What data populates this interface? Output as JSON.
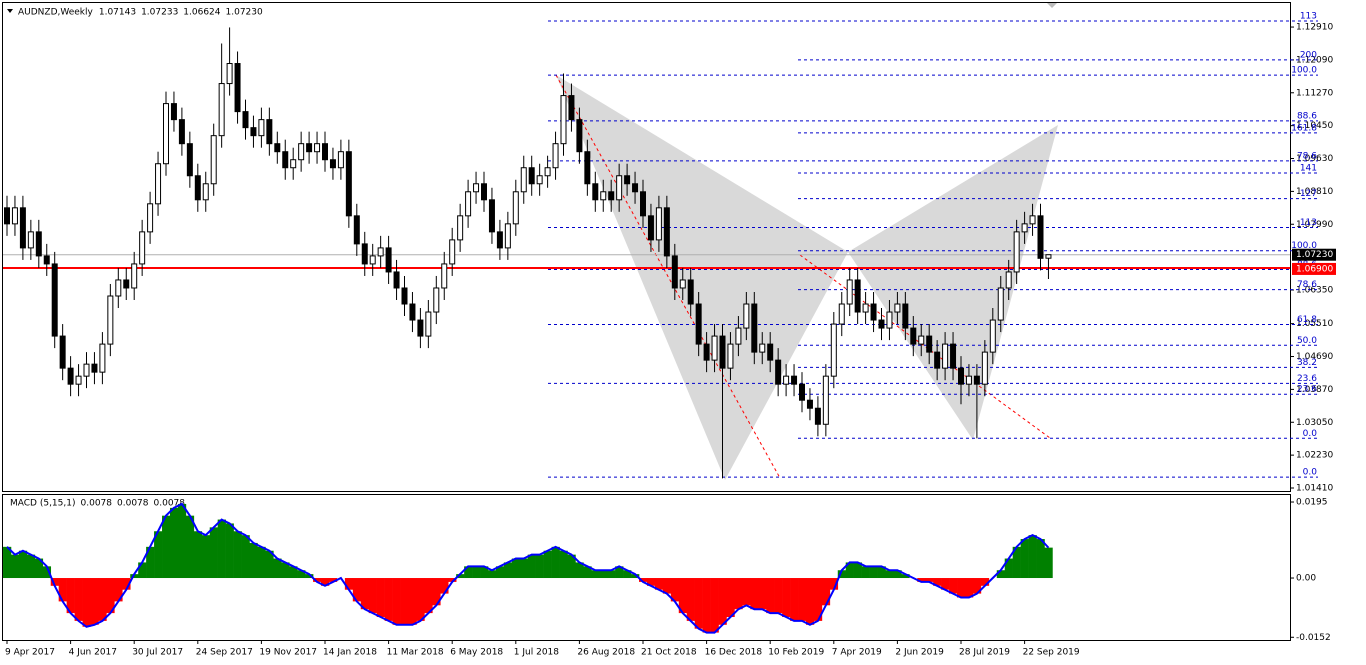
{
  "chart_data": [
    {
      "type": "candlestick",
      "title": "AUDNZD,Weekly",
      "title_values": [
        "1.07143",
        "1.07233",
        "1.06624",
        "1.07230"
      ],
      "categories": [
        "9 Apr 2017",
        null,
        null,
        null,
        null,
        null,
        null,
        null,
        "4 Jun 2017",
        null,
        null,
        null,
        null,
        null,
        null,
        null,
        "30 Jul 2017",
        null,
        null,
        null,
        null,
        null,
        null,
        null,
        "24 Sep 2017",
        null,
        null,
        null,
        null,
        null,
        null,
        null,
        "19 Nov 2017",
        null,
        null,
        null,
        null,
        null,
        null,
        null,
        "14 Jan 2018",
        null,
        null,
        null,
        null,
        null,
        null,
        null,
        "11 Mar 2018",
        null,
        null,
        null,
        null,
        null,
        null,
        null,
        "6 May 2018",
        null,
        null,
        null,
        null,
        null,
        null,
        null,
        "1 Jul 2018",
        null,
        null,
        null,
        null,
        null,
        null,
        null,
        "26 Aug 2018",
        null,
        null,
        null,
        null,
        null,
        null,
        null,
        "21 Oct 2018",
        null,
        null,
        null,
        null,
        null,
        null,
        null,
        "16 Dec 2018",
        null,
        null,
        null,
        null,
        null,
        null,
        null,
        "10 Feb 2019",
        null,
        null,
        null,
        null,
        null,
        null,
        null,
        "7 Apr 2019",
        null,
        null,
        null,
        null,
        null,
        null,
        null,
        "2 Jun 2019",
        null,
        null,
        null,
        null,
        null,
        null,
        null,
        "28 Jul 2019",
        null,
        null,
        null,
        null,
        null,
        null,
        null,
        "22 Sep 2019",
        null,
        null,
        null
      ],
      "open": [
        1.084,
        1.08,
        1.084,
        1.074,
        1.078,
        1.072,
        1.07,
        1.052,
        1.044,
        1.04,
        1.042,
        1.045,
        1.043,
        1.05,
        1.062,
        1.066,
        1.064,
        1.07,
        1.078,
        1.085,
        1.095,
        1.11,
        1.106,
        1.1,
        1.092,
        1.086,
        1.09,
        1.102,
        1.115,
        1.12,
        1.108,
        1.104,
        1.102,
        1.106,
        1.1,
        1.098,
        1.094,
        1.096,
        1.1,
        1.098,
        1.1,
        1.096,
        1.094,
        1.098,
        1.082,
        1.075,
        1.07,
        1.072,
        1.074,
        1.068,
        1.064,
        1.06,
        1.056,
        1.052,
        1.058,
        1.064,
        1.07,
        1.076,
        1.082,
        1.088,
        1.09,
        1.086,
        1.078,
        1.074,
        1.08,
        1.088,
        1.094,
        1.09,
        1.092,
        1.094,
        1.1,
        1.112,
        1.106,
        1.098,
        1.09,
        1.086,
        1.088,
        1.086,
        1.092,
        1.09,
        1.088,
        1.082,
        1.076,
        1.084,
        1.072,
        1.064,
        1.066,
        1.06,
        1.05,
        1.046,
        1.052,
        1.044,
        1.05,
        1.054,
        1.06,
        1.048,
        1.05,
        1.046,
        1.04,
        1.042,
        1.04,
        1.036,
        1.034,
        1.03,
        1.042,
        1.055,
        1.06,
        1.066,
        1.058,
        1.06,
        1.056,
        1.054,
        1.058,
        1.06,
        1.054,
        1.05,
        1.052,
        1.048,
        1.044,
        1.05,
        1.044,
        1.04,
        1.042,
        1.04,
        1.048,
        1.056,
        1.064,
        1.068,
        1.078,
        1.08,
        1.082,
        1.07143
      ],
      "high": [
        1.087,
        1.087,
        1.087,
        1.081,
        1.081,
        1.075,
        1.073,
        1.055,
        1.047,
        1.045,
        1.048,
        1.048,
        1.053,
        1.065,
        1.069,
        1.069,
        1.073,
        1.081,
        1.088,
        1.098,
        1.113,
        1.113,
        1.109,
        1.103,
        1.095,
        1.093,
        1.105,
        1.125,
        1.129,
        1.123,
        1.111,
        1.107,
        1.109,
        1.109,
        1.103,
        1.101,
        1.099,
        1.103,
        1.103,
        1.103,
        1.103,
        1.099,
        1.101,
        1.101,
        1.085,
        1.078,
        1.075,
        1.077,
        1.077,
        1.071,
        1.067,
        1.063,
        1.059,
        1.061,
        1.067,
        1.073,
        1.079,
        1.085,
        1.091,
        1.093,
        1.093,
        1.089,
        1.081,
        1.083,
        1.091,
        1.097,
        1.097,
        1.095,
        1.097,
        1.103,
        1.1175,
        1.115,
        1.109,
        1.101,
        1.093,
        1.091,
        1.091,
        1.095,
        1.095,
        1.093,
        1.091,
        1.085,
        1.087,
        1.087,
        1.075,
        1.069,
        1.069,
        1.063,
        1.053,
        1.055,
        1.055,
        1.053,
        1.057,
        1.063,
        1.063,
        1.053,
        1.053,
        1.049,
        1.045,
        1.045,
        1.043,
        1.039,
        1.037,
        1.045,
        1.058,
        1.063,
        1.069,
        1.069,
        1.063,
        1.063,
        1.059,
        1.061,
        1.063,
        1.063,
        1.057,
        1.055,
        1.055,
        1.051,
        1.053,
        1.053,
        1.047,
        1.045,
        1.045,
        1.051,
        1.059,
        1.067,
        1.071,
        1.081,
        1.083,
        1.085,
        1.085,
        1.07233
      ],
      "low": [
        1.077,
        1.077,
        1.071,
        1.071,
        1.069,
        1.067,
        1.049,
        1.041,
        1.037,
        1.037,
        1.039,
        1.04,
        1.04,
        1.047,
        1.059,
        1.061,
        1.061,
        1.067,
        1.075,
        1.082,
        1.092,
        1.103,
        1.097,
        1.089,
        1.083,
        1.083,
        1.087,
        1.099,
        1.112,
        1.105,
        1.101,
        1.099,
        1.099,
        1.097,
        1.095,
        1.091,
        1.091,
        1.093,
        1.095,
        1.095,
        1.093,
        1.091,
        1.091,
        1.079,
        1.072,
        1.067,
        1.067,
        1.069,
        1.065,
        1.061,
        1.057,
        1.053,
        1.049,
        1.049,
        1.055,
        1.061,
        1.067,
        1.073,
        1.079,
        1.085,
        1.083,
        1.075,
        1.071,
        1.071,
        1.077,
        1.085,
        1.087,
        1.087,
        1.089,
        1.091,
        1.097,
        1.103,
        1.095,
        1.087,
        1.083,
        1.083,
        1.083,
        1.083,
        1.087,
        1.085,
        1.079,
        1.073,
        1.073,
        1.069,
        1.061,
        1.061,
        1.057,
        1.047,
        1.043,
        1.043,
        1.0165,
        1.041,
        1.047,
        1.051,
        1.045,
        1.045,
        1.043,
        1.037,
        1.037,
        1.037,
        1.033,
        1.031,
        1.027,
        1.027,
        1.039,
        1.052,
        1.057,
        1.055,
        1.055,
        1.053,
        1.051,
        1.051,
        1.055,
        1.051,
        1.047,
        1.047,
        1.045,
        1.041,
        1.041,
        1.041,
        1.035,
        1.037,
        1.0265,
        1.037,
        1.045,
        1.053,
        1.061,
        1.065,
        1.075,
        1.077,
        1.0684,
        1.06624
      ],
      "close": [
        1.08,
        1.084,
        1.074,
        1.078,
        1.072,
        1.07,
        1.052,
        1.044,
        1.04,
        1.042,
        1.045,
        1.043,
        1.05,
        1.062,
        1.066,
        1.064,
        1.07,
        1.078,
        1.085,
        1.095,
        1.11,
        1.106,
        1.1,
        1.092,
        1.086,
        1.09,
        1.102,
        1.115,
        1.12,
        1.108,
        1.104,
        1.102,
        1.106,
        1.1,
        1.098,
        1.094,
        1.096,
        1.1,
        1.098,
        1.1,
        1.096,
        1.094,
        1.098,
        1.082,
        1.075,
        1.07,
        1.072,
        1.074,
        1.068,
        1.064,
        1.06,
        1.056,
        1.052,
        1.058,
        1.064,
        1.07,
        1.076,
        1.082,
        1.088,
        1.09,
        1.086,
        1.078,
        1.074,
        1.08,
        1.088,
        1.094,
        1.09,
        1.092,
        1.094,
        1.1,
        1.112,
        1.106,
        1.098,
        1.09,
        1.086,
        1.088,
        1.086,
        1.092,
        1.09,
        1.088,
        1.082,
        1.076,
        1.084,
        1.072,
        1.064,
        1.066,
        1.06,
        1.05,
        1.046,
        1.052,
        1.044,
        1.05,
        1.054,
        1.06,
        1.048,
        1.05,
        1.046,
        1.04,
        1.042,
        1.04,
        1.036,
        1.034,
        1.03,
        1.042,
        1.055,
        1.06,
        1.066,
        1.058,
        1.06,
        1.056,
        1.054,
        1.058,
        1.06,
        1.054,
        1.05,
        1.052,
        1.048,
        1.044,
        1.05,
        1.044,
        1.04,
        1.042,
        1.04,
        1.048,
        1.056,
        1.064,
        1.068,
        1.078,
        1.08,
        1.082,
        1.0714,
        1.0723
      ],
      "ylim": [
        1.0131,
        1.1346
      ],
      "yticks": [
        {
          "value": 1.1291,
          "label": "1.12910"
        },
        {
          "value": 1.1209,
          "label": "1.12090"
        },
        {
          "value": 1.1127,
          "label": "1.11270"
        },
        {
          "value": 1.1045,
          "label": "1.10450"
        },
        {
          "value": 1.0963,
          "label": "1.09630"
        },
        {
          "value": 1.0881,
          "label": "1.08810"
        },
        {
          "value": 1.0799,
          "label": "1.07990"
        },
        {
          "value": 1.0635,
          "label": "1.06350"
        },
        {
          "value": 1.0551,
          "label": "1.05510"
        },
        {
          "value": 1.0469,
          "label": "1.04690"
        },
        {
          "value": 1.0387,
          "label": "1.03870"
        },
        {
          "value": 1.0305,
          "label": "1.03050"
        },
        {
          "value": 1.0223,
          "label": "1.02230"
        },
        {
          "value": 1.0141,
          "label": "1.01410"
        }
      ],
      "price_marker": {
        "value": 1.0723,
        "label": "1.07230"
      },
      "level_marker": {
        "value": 1.069,
        "label": "1.06900"
      },
      "fib_a": [
        {
          "value": 1.1306,
          "label": "113"
        },
        {
          "value": 1.1171,
          "label": "100.0"
        },
        {
          "value": 1.1057,
          "label": "88.6"
        },
        {
          "value": 1.0957,
          "label": "78.6"
        },
        {
          "value": 1.0791,
          "label": "113"
        },
        {
          "value": 1.0686,
          "label": "88.6"
        },
        {
          "value": 1.0549,
          "label": "61.8"
        },
        {
          "value": 1.0402,
          "label": "23.6"
        },
        {
          "value": 1.0168,
          "label": "0.0"
        }
      ],
      "fib_b": [
        {
          "value": 1.1209,
          "label": "200"
        },
        {
          "value": 1.1027,
          "label": "161.8"
        },
        {
          "value": 1.0927,
          "label": "141"
        },
        {
          "value": 1.0863,
          "label": "127"
        },
        {
          "value": 1.0733,
          "label": "100.0"
        },
        {
          "value": 1.0636,
          "label": "78.6"
        },
        {
          "value": 1.0497,
          "label": "50.0"
        },
        {
          "value": 1.0442,
          "label": "38.2"
        },
        {
          "value": 1.0375,
          "label": "23.6"
        },
        {
          "value": 1.0265,
          "label": "0.0"
        }
      ]
    },
    {
      "type": "area",
      "title": "MACD (5,15,1)",
      "title_values": [
        "0.0078",
        "0.0078",
        "0.0078"
      ],
      "values": [
        0.008,
        0.006,
        0.007,
        0.006,
        0.005,
        0.003,
        -0.002,
        -0.006,
        -0.009,
        -0.011,
        -0.0125,
        -0.012,
        -0.011,
        -0.009,
        -0.006,
        -0.003,
        0.001,
        0.004,
        0.008,
        0.012,
        0.016,
        0.018,
        0.019,
        0.016,
        0.012,
        0.011,
        0.013,
        0.015,
        0.014,
        0.012,
        0.011,
        0.009,
        0.008,
        0.007,
        0.005,
        0.004,
        0.003,
        0.002,
        0.001,
        -0.001,
        -0.002,
        -0.001,
        0.0,
        -0.003,
        -0.006,
        -0.008,
        -0.009,
        -0.01,
        -0.011,
        -0.012,
        -0.012,
        -0.012,
        -0.011,
        -0.009,
        -0.007,
        -0.004,
        -0.001,
        0.001,
        0.003,
        0.003,
        0.003,
        0.002,
        0.003,
        0.004,
        0.005,
        0.005,
        0.006,
        0.006,
        0.007,
        0.008,
        0.007,
        0.006,
        0.004,
        0.003,
        0.002,
        0.002,
        0.002,
        0.003,
        0.002,
        0.001,
        -0.001,
        -0.002,
        -0.003,
        -0.004,
        -0.006,
        -0.009,
        -0.011,
        -0.013,
        -0.014,
        -0.014,
        -0.012,
        -0.01,
        -0.008,
        -0.007,
        -0.008,
        -0.008,
        -0.009,
        -0.009,
        -0.01,
        -0.011,
        -0.011,
        -0.012,
        -0.011,
        -0.007,
        -0.003,
        0.002,
        0.004,
        0.004,
        0.003,
        0.003,
        0.003,
        0.002,
        0.002,
        0.001,
        0.0,
        -0.001,
        -0.001,
        -0.002,
        -0.003,
        -0.004,
        -0.005,
        -0.005,
        -0.004,
        -0.002,
        0.0,
        0.002,
        0.005,
        0.008,
        0.01,
        0.011,
        0.01,
        0.0078
      ],
      "positive_color": "#008000",
      "negative_color": "#ff0000",
      "line_color": "#0000ff",
      "ylim": [
        -0.0159,
        0.0213
      ],
      "yticks": [
        0.0195,
        {
          "value": 0.0,
          "label": "0.00"
        },
        -0.0152
      ]
    }
  ]
}
